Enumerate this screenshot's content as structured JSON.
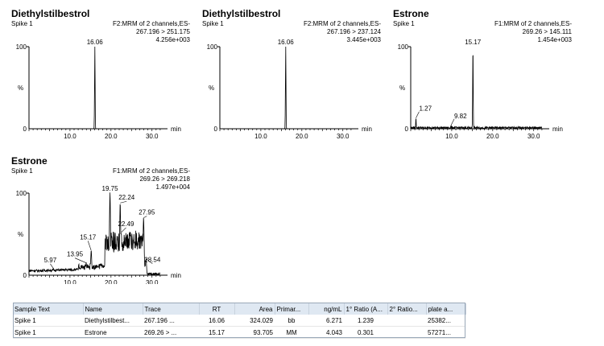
{
  "chart_data": [
    {
      "type": "line",
      "title": "Diethylstilbestrol",
      "sample": "Spike 1",
      "channel_line1": "F2:MRM of 2 channels,ES-",
      "channel_line2": "267.196 > 251.175",
      "channel_line3": "4.256e+003",
      "xlabel": "min",
      "ylabel": "%",
      "xlim": [
        0,
        33
      ],
      "ylim": [
        0,
        100
      ],
      "xticks": [
        "10.0",
        "20.0",
        "30.0"
      ],
      "yticks": [
        "0",
        "100"
      ],
      "peaks": [
        {
          "rt": 16.06,
          "label": "16.06",
          "height": 100
        }
      ],
      "noise": false
    },
    {
      "type": "line",
      "title": "Diethylstilbestrol",
      "sample": "Spike 1",
      "channel_line1": "F2:MRM of 2 channels,ES-",
      "channel_line2": "267.196 > 237.124",
      "channel_line3": "3.445e+003",
      "xlabel": "min",
      "ylabel": "%",
      "xlim": [
        0,
        33
      ],
      "ylim": [
        0,
        100
      ],
      "xticks": [
        "10.0",
        "20.0",
        "30.0"
      ],
      "yticks": [
        "0",
        "100"
      ],
      "peaks": [
        {
          "rt": 16.06,
          "label": "16.06",
          "height": 100
        }
      ],
      "noise": false
    },
    {
      "type": "line",
      "title": "Estrone",
      "sample": "Spike 1",
      "channel_line1": "F1:MRM of 2 channels,ES-",
      "channel_line2": "269.26 > 145.111",
      "channel_line3": "1.454e+003",
      "xlabel": "min",
      "ylabel": "%",
      "xlim": [
        0,
        33
      ],
      "ylim": [
        0,
        100
      ],
      "xticks": [
        "10.0",
        "20.0",
        "30.0"
      ],
      "yticks": [
        "0",
        "100"
      ],
      "peaks": [
        {
          "rt": 1.27,
          "label": "1.27",
          "height": 13
        },
        {
          "rt": 9.82,
          "label": "9.82",
          "height": 4
        },
        {
          "rt": 15.17,
          "label": "15.17",
          "height": 100
        }
      ],
      "noise": true
    },
    {
      "type": "line",
      "title": "Estrone",
      "sample": "Spike 1",
      "channel_line1": "F1:MRM of 2 channels,ES-",
      "channel_line2": "269.26 > 269.218",
      "channel_line3": "1.497e+004",
      "xlabel": "min",
      "ylabel": "%",
      "xlim": [
        0,
        33
      ],
      "ylim": [
        0,
        100
      ],
      "xticks": [
        "10.0",
        "20.0",
        "30.0"
      ],
      "yticks": [
        "0",
        "100"
      ],
      "peaks": [
        {
          "rt": 5.97,
          "label": "5.97",
          "height": 8
        },
        {
          "rt": 13.95,
          "label": "13.95",
          "height": 15
        },
        {
          "rt": 15.17,
          "label": "15.17",
          "height": 30
        },
        {
          "rt": 19.75,
          "label": "19.75",
          "height": 100
        },
        {
          "rt": 22.24,
          "label": "22.24",
          "height": 88
        },
        {
          "rt": 22.49,
          "label": "22.49",
          "height": 52
        },
        {
          "rt": 27.95,
          "label": "27.95",
          "height": 70
        },
        {
          "rt": 28.54,
          "label": "28.54",
          "height": 20
        }
      ],
      "noise": true,
      "baseline": "complex"
    }
  ],
  "results_table": {
    "headers": [
      "Sample Text",
      "Name",
      "Trace",
      "RT",
      "Area",
      "Primar...",
      "ng/mL",
      "1° Ratio (A...",
      "2° Ratio...",
      "plate a..."
    ],
    "rows": [
      [
        "Spike 1",
        "Diethylstilbest...",
        "267.196 ...",
        "16.06",
        "324.029",
        "bb",
        "6.271",
        "1.239",
        "",
        "25382..."
      ],
      [
        "Spike 1",
        "Estrone",
        "269.26 > ...",
        "15.17",
        "93.705",
        "MM",
        "4.043",
        "0.301",
        "",
        "57271..."
      ]
    ]
  }
}
